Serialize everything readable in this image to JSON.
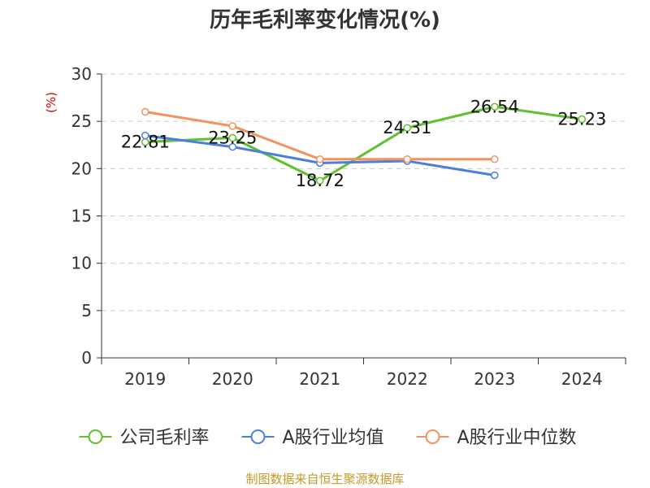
{
  "chart_data": {
    "type": "line",
    "title": "历年毛利率变化情况(%)",
    "ylabel": "(%)",
    "xlabel": "",
    "categories": [
      "2019",
      "2020",
      "2021",
      "2022",
      "2023",
      "2024"
    ],
    "ylim": [
      0,
      30
    ],
    "yticks": [
      0,
      5,
      10,
      15,
      20,
      25,
      30
    ],
    "grid": true,
    "legend_position": "bottom",
    "series": [
      {
        "name": "公司毛利率",
        "color": "#5fc12e",
        "values": [
          22.81,
          23.25,
          18.72,
          24.31,
          26.54,
          25.23
        ],
        "show_labels": true
      },
      {
        "name": "A股行业均值",
        "color": "#4a7fe0",
        "values": [
          23.5,
          22.3,
          20.6,
          20.8,
          19.3,
          null
        ],
        "show_labels": false
      },
      {
        "name": "A股行业中位数",
        "color": "#f4925e",
        "values": [
          26.0,
          24.5,
          21.0,
          21.0,
          21.0,
          null
        ],
        "show_labels": false
      }
    ]
  },
  "footer": {
    "source": "制图数据来自恒生聚源数据库"
  },
  "colors": {
    "axis": "#333333",
    "grid": "#cccccc",
    "ylabel": "#dd0000",
    "title": "#333333",
    "source": "#c59a2a"
  }
}
